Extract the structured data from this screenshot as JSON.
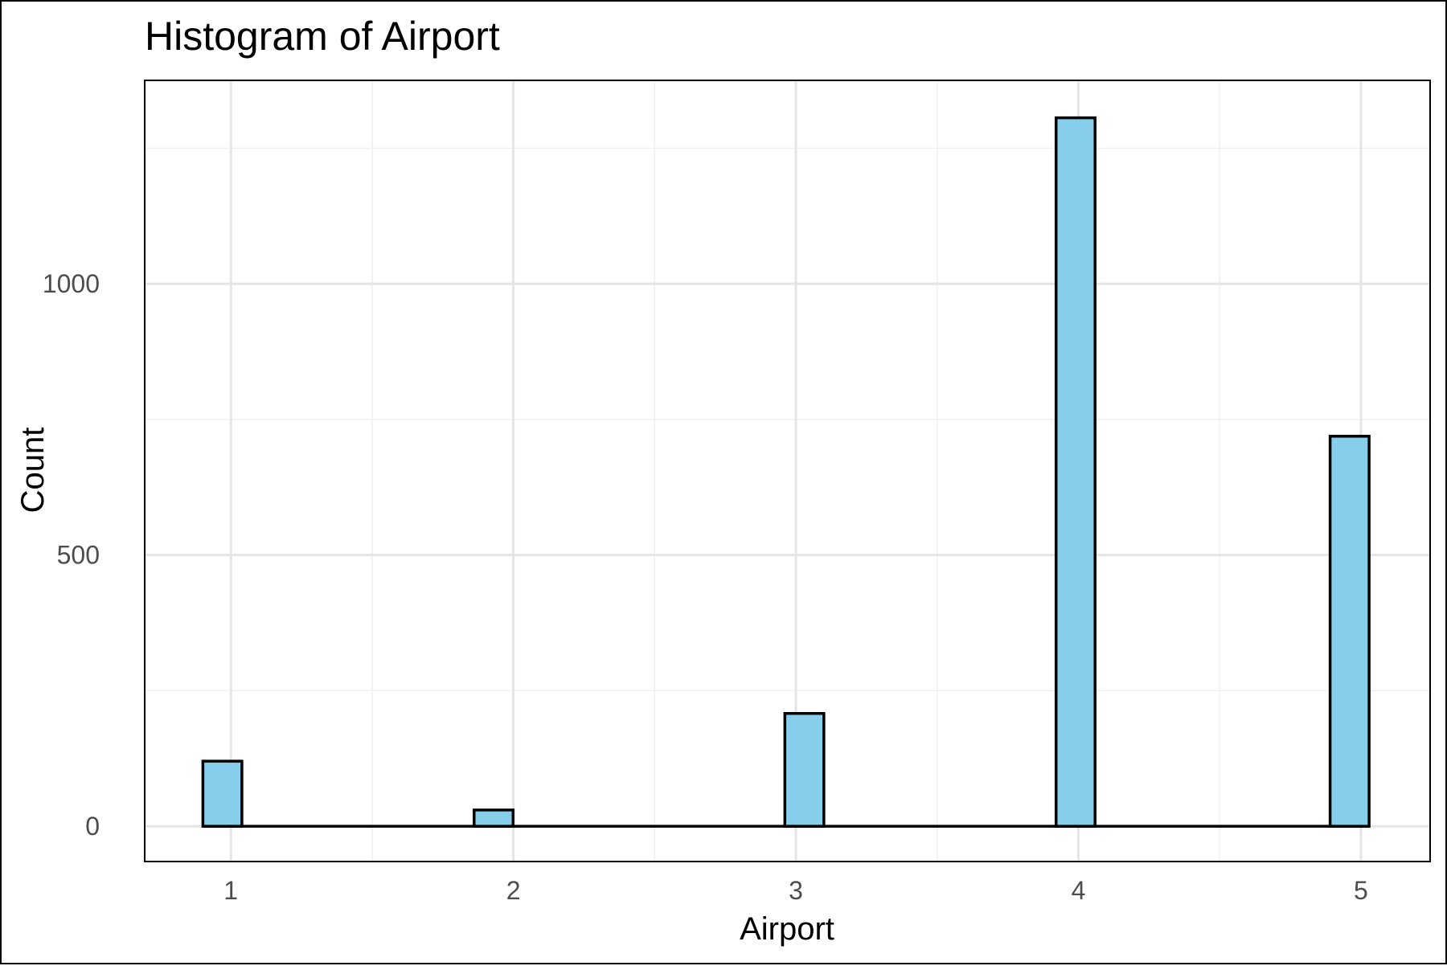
{
  "chart_data": {
    "type": "bar",
    "title": "Histogram of Airport",
    "xlabel": "Airport",
    "ylabel": "Count",
    "x_ticks": [
      "1",
      "2",
      "3",
      "4",
      "5"
    ],
    "y_ticks": [
      "0",
      "500",
      "1000"
    ],
    "xlim": [
      0.695,
      5.245
    ],
    "ylim": [
      -65,
      1375
    ],
    "bars": [
      {
        "x": 0.97,
        "value": 120
      },
      {
        "x": 1.93,
        "value": 30
      },
      {
        "x": 3.03,
        "value": 208
      },
      {
        "x": 3.99,
        "value": 1306
      },
      {
        "x": 4.96,
        "value": 719
      }
    ],
    "bin_width": 0.138,
    "bar_fill": "#87CEEB",
    "bar_outline": "#000000",
    "grid": true,
    "legend": "none"
  }
}
